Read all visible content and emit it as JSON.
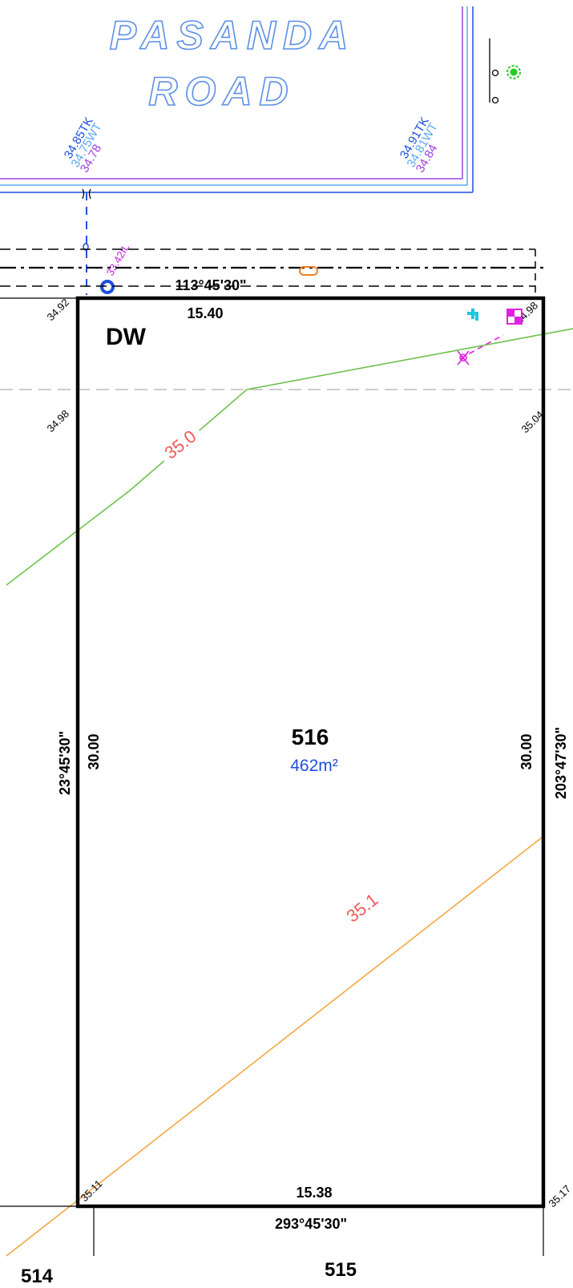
{
  "road": {
    "line1": "PASANDA",
    "line2": "ROAD"
  },
  "levels": {
    "tk_left": "34.85TK",
    "wt_left": "34.75WT",
    "kerb_left": "34.78",
    "tk_right": "34.91TK",
    "wt_right": "34.81WT",
    "kerb_right": "34.84",
    "invert": "33.42IL",
    "corner_tl": "34.92",
    "corner_tr": "34.98",
    "mid_left": "34.98",
    "mid_right": "35.04",
    "corner_bl": "35.11",
    "corner_br": "35.17"
  },
  "lot": {
    "number": "516",
    "area": "462m²",
    "driveway": "DW",
    "front_length": "15.40",
    "front_bearing": "113°45'30\"",
    "left_length": "30.00",
    "left_bearing": "23°45'30\"",
    "right_length": "30.00",
    "right_bearing": "203°47'30\"",
    "rear_length": "15.38",
    "rear_bearing": "293°45'30\""
  },
  "contours": {
    "green": "35.0",
    "orange": "35.1"
  },
  "neighbours": {
    "left": "514",
    "bottom": "515"
  },
  "colors": {
    "boundary": "#000000",
    "contour_green": "#6cc24a",
    "contour_orange": "#f5a642",
    "contour_label": "#f05a5a",
    "area_text": "#1f4fe0",
    "road_text": "#5b8fe6",
    "magenta": "#e020e0",
    "cyan": "#18c8e0",
    "purple": "#a040e0",
    "green_marker": "#22cc22"
  }
}
